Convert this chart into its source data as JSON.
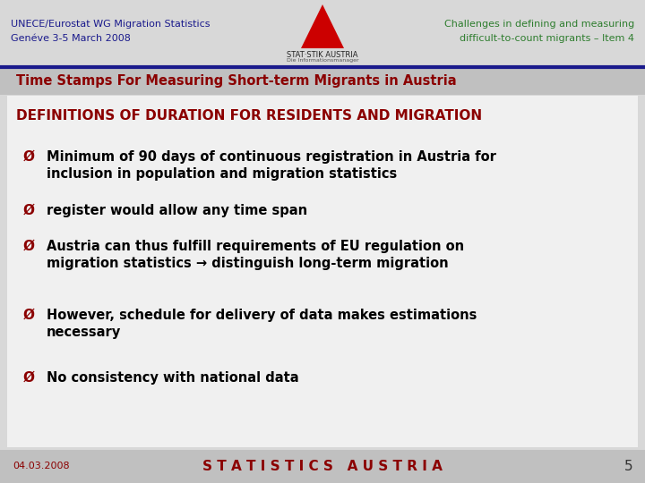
{
  "bg_color": "#d8d8d8",
  "content_bg": "#f0f0f0",
  "header_left_line1": "UNECE/Eurostat WG Migration Statistics",
  "header_left_line2": "Genéve 3-5 March 2008",
  "header_right_line1": "Challenges in defining and measuring",
  "header_right_line2": "difficult-to-count migrants – Item 4",
  "header_left_color": "#1a1a8c",
  "header_right_color": "#2e7d2e",
  "slide_title": "Time Stamps For Measuring Short-term Migrants in Austria",
  "slide_title_color": "#8b0000",
  "section_title": "DEFINITIONS OF DURATION FOR RESIDENTS AND MIGRATION",
  "section_title_color": "#8b0000",
  "bullet_color": "#8b0000",
  "bullet_text_color": "#000000",
  "bullets": [
    "Minimum of 90 days of continuous registration in Austria for\ninclusion in population and migration statistics",
    "register would allow any time span",
    "Austria can thus fulfill requirements of EU regulation on\nmigration statistics → distinguish long-term migration",
    "However, schedule for delivery of data makes estimations\nnecessary",
    "No consistency with national data"
  ],
  "footer_date": "04.03.2008",
  "footer_center": "S T A T I S T I C S   A U S T R I A",
  "footer_page": "5",
  "footer_color": "#8b0000",
  "footer_page_color": "#333333",
  "divider_color": "#1a1a8c",
  "slide_title_bg": "#c0c0c0",
  "footer_bg": "#c0c0c0",
  "logo_color": "#cc0000",
  "logo_text": "STAT·STIK AUSTRIA",
  "logo_subtext": "Die Informationsmanager"
}
